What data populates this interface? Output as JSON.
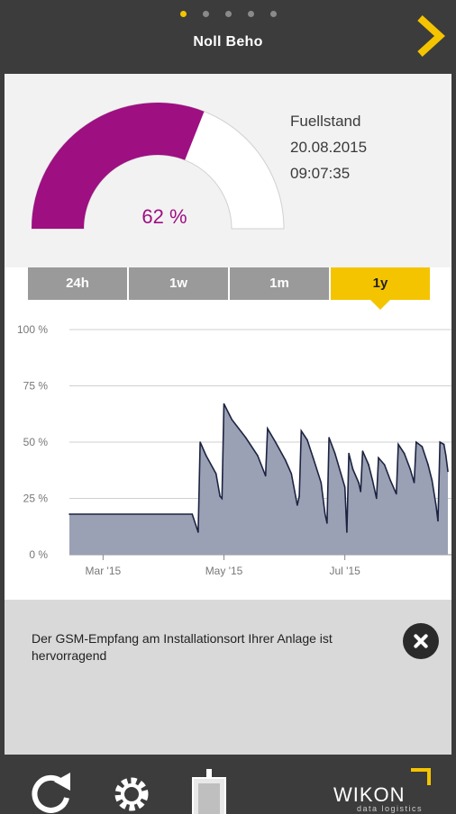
{
  "header": {
    "title": "Noll Beho",
    "pages": 5,
    "active_page": 1
  },
  "gauge": {
    "value_percent": 62,
    "value_label": "62 %",
    "fill_color": "#9e0f82",
    "empty_color": "#ffffff"
  },
  "info": {
    "label": "Fuellstand",
    "date": "20.08.2015",
    "time": "09:07:35"
  },
  "tabs": [
    {
      "label": "24h",
      "active": false
    },
    {
      "label": "1w",
      "active": false
    },
    {
      "label": "1m",
      "active": false
    },
    {
      "label": "1y",
      "active": true
    }
  ],
  "chart_data": {
    "type": "area",
    "y_ticks": [
      "0 %",
      "25 %",
      "50 %",
      "75 %",
      "100 %"
    ],
    "ylim": [
      0,
      100
    ],
    "x_ticks": [
      {
        "label": "Mar '15",
        "date": "2015-03-01"
      },
      {
        "label": "May '15",
        "date": "2015-05-01"
      },
      {
        "label": "Jul '15",
        "date": "2015-07-01"
      }
    ],
    "xlim": [
      "2015-02-12",
      "2015-08-22"
    ],
    "series": [
      {
        "color": "#1c2340",
        "fill": "#9aa1b5",
        "points": [
          [
            "2015-02-12",
            18
          ],
          [
            "2015-04-15",
            18
          ],
          [
            "2015-04-18",
            10
          ],
          [
            "2015-04-19",
            50
          ],
          [
            "2015-04-22",
            44
          ],
          [
            "2015-04-27",
            36
          ],
          [
            "2015-04-29",
            26
          ],
          [
            "2015-04-30",
            25
          ],
          [
            "2015-05-01",
            67
          ],
          [
            "2015-05-05",
            60
          ],
          [
            "2015-05-12",
            52
          ],
          [
            "2015-05-18",
            44
          ],
          [
            "2015-05-22",
            35
          ],
          [
            "2015-05-23",
            56
          ],
          [
            "2015-05-27",
            50
          ],
          [
            "2015-06-01",
            42
          ],
          [
            "2015-06-04",
            36
          ],
          [
            "2015-06-07",
            22
          ],
          [
            "2015-06-08",
            26
          ],
          [
            "2015-06-09",
            55
          ],
          [
            "2015-06-12",
            51
          ],
          [
            "2015-06-15",
            43
          ],
          [
            "2015-06-19",
            32
          ],
          [
            "2015-06-21",
            18
          ],
          [
            "2015-06-22",
            14
          ],
          [
            "2015-06-23",
            52
          ],
          [
            "2015-06-26",
            45
          ],
          [
            "2015-06-29",
            36
          ],
          [
            "2015-07-01",
            30
          ],
          [
            "2015-07-02",
            10
          ],
          [
            "2015-07-03",
            45
          ],
          [
            "2015-07-05",
            38
          ],
          [
            "2015-07-08",
            32
          ],
          [
            "2015-07-09",
            28
          ],
          [
            "2015-07-10",
            46
          ],
          [
            "2015-07-13",
            40
          ],
          [
            "2015-07-15",
            33
          ],
          [
            "2015-07-17",
            25
          ],
          [
            "2015-07-18",
            43
          ],
          [
            "2015-07-21",
            40
          ],
          [
            "2015-07-24",
            33
          ],
          [
            "2015-07-27",
            27
          ],
          [
            "2015-07-28",
            49
          ],
          [
            "2015-07-31",
            45
          ],
          [
            "2015-08-03",
            38
          ],
          [
            "2015-08-05",
            32
          ],
          [
            "2015-08-06",
            50
          ],
          [
            "2015-08-09",
            48
          ],
          [
            "2015-08-12",
            40
          ],
          [
            "2015-08-14",
            33
          ],
          [
            "2015-08-16",
            22
          ],
          [
            "2015-08-17",
            15
          ],
          [
            "2015-08-18",
            50
          ],
          [
            "2015-08-20",
            49
          ],
          [
            "2015-08-21",
            44
          ],
          [
            "2015-08-22",
            37
          ]
        ]
      }
    ],
    "grid": true
  },
  "notice": {
    "message": "Der GSM-Empfang am Installationsort Ihrer Anlage ist hervorragend"
  },
  "footer": {
    "icons": [
      "refresh-icon",
      "settings-gear-icon",
      "device-icon"
    ],
    "logo_text": "WIKON",
    "logo_subtitle": "data logistics",
    "accent": "#f5c400"
  }
}
